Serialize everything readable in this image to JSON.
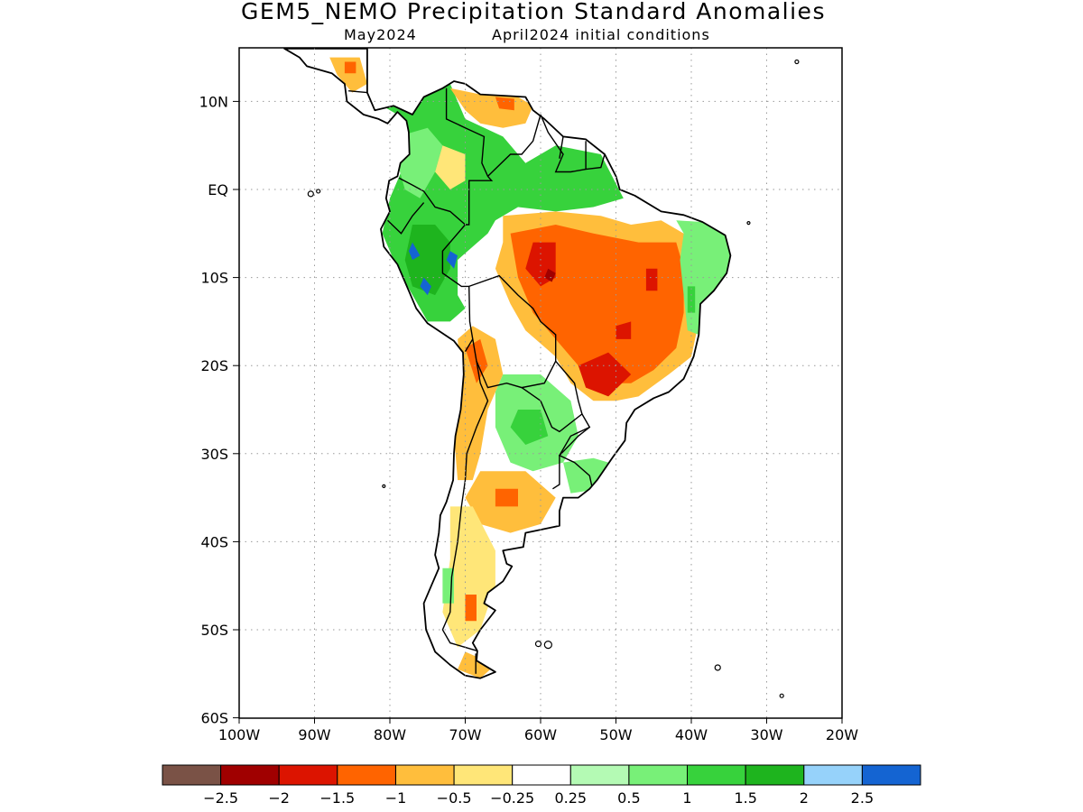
{
  "title": "GEM5_NEMO Precipitation Standard Anomalies",
  "subtitle_left": "May2024",
  "subtitle_right": "April2024 initial conditions",
  "axes": {
    "lat_ticks": [
      "10N",
      "EQ",
      "10S",
      "20S",
      "30S",
      "40S",
      "50S",
      "60S"
    ],
    "lon_ticks": [
      "100W",
      "90W",
      "80W",
      "70W",
      "60W",
      "50W",
      "40W",
      "30W",
      "20W"
    ],
    "lon_range": [
      -100,
      -20
    ],
    "lat_range": [
      -60,
      16
    ],
    "grid": "dotted"
  },
  "colorbar": {
    "colors": [
      "#7a5246",
      "#a00000",
      "#dc1400",
      "#ff6400",
      "#ffbe3c",
      "#ffe678",
      "#ffffff",
      "#b4fab4",
      "#78f078",
      "#37d23c",
      "#1eb41e",
      "#96d2fa",
      "#1464d2"
    ],
    "labels": [
      "−2.5",
      "−2",
      "−1.5",
      "−1",
      "−0.5",
      "−0.25",
      "0.25",
      "0.5",
      "1",
      "1.5",
      "2",
      "2.5"
    ]
  },
  "regions": [
    {
      "name": "northern Andes / Colombia",
      "anomaly_class": "1 to 1.5"
    },
    {
      "name": "Venezuela coast",
      "anomaly_class": "-1 to -0.5"
    },
    {
      "name": "Peru Amazon",
      "anomaly_class": "2.5+"
    },
    {
      "name": "central Brazil",
      "anomaly_class": "-1.5 to -1"
    },
    {
      "name": "Mato Grosso core",
      "anomaly_class": "-2 to -1.5"
    },
    {
      "name": "eastern Brazil coast",
      "anomaly_class": "0.5 to 1.5"
    },
    {
      "name": "northern Argentina",
      "anomaly_class": "0.5 to 1.5"
    },
    {
      "name": "Patagonia",
      "anomaly_class": "-1 to -0.25"
    }
  ]
}
